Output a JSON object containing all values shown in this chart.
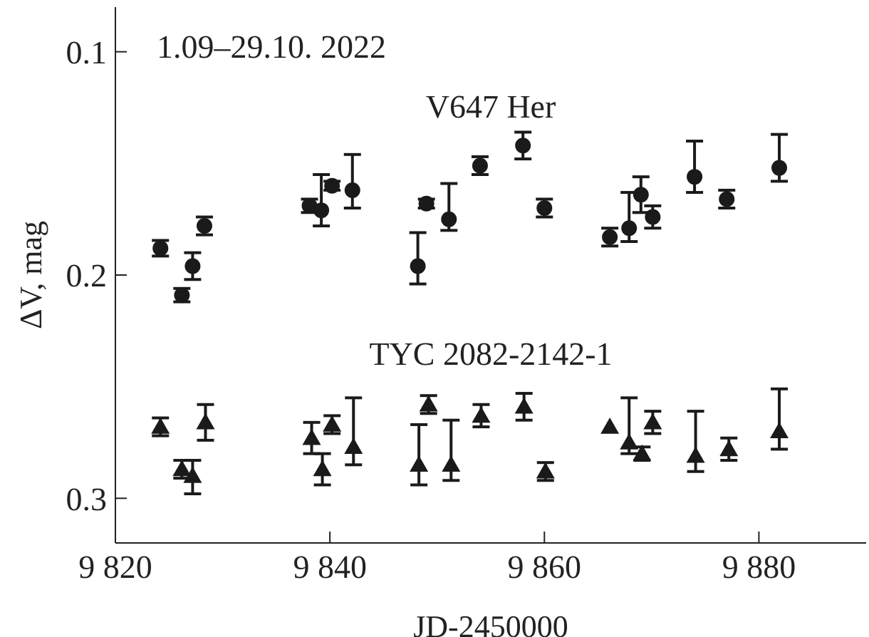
{
  "chart_data": {
    "type": "scatter",
    "xlabel": "JD-2450000",
    "ylabel": "ΔV, mag",
    "annotations": [
      "1.09–29.10. 2022"
    ],
    "xlim": [
      9820,
      9890
    ],
    "xticks": [
      {
        "value": 9820,
        "label": "9 820"
      },
      {
        "value": 9840,
        "label": "9 840"
      },
      {
        "value": 9860,
        "label": "9 860"
      },
      {
        "value": 9880,
        "label": "9 880"
      }
    ],
    "ylim": [
      0.32,
      0.08
    ],
    "yticks": [
      0.1,
      0.2,
      0.3
    ],
    "grid": false,
    "legend": false,
    "series": [
      {
        "name": "V647 Her",
        "color": "#1a1a1a",
        "marker": "circle",
        "x": [
          9824.2,
          9826.2,
          9827.2,
          9828.3,
          9838.1,
          9839.2,
          9840.2,
          9842.1,
          9848.2,
          9849.0,
          9851.1,
          9854.0,
          9858.0,
          9860.0,
          9866.1,
          9867.9,
          9869.0,
          9870.1,
          9874.0,
          9877.0,
          9881.9
        ],
        "values": [
          0.188,
          0.209,
          0.196,
          0.178,
          0.169,
          0.171,
          0.16,
          0.162,
          0.196,
          0.168,
          0.175,
          0.151,
          0.142,
          0.17,
          0.183,
          0.179,
          0.164,
          0.174,
          0.156,
          0.166,
          0.152
        ],
        "errors": [
          0.0035,
          0.003,
          0.006,
          0.004,
          0.003,
          [
            0.155,
            0.178
          ],
          0.002,
          [
            0.146,
            0.17
          ],
          [
            0.181,
            0.204
          ],
          0.002,
          [
            0.159,
            0.18
          ],
          0.004,
          0.006,
          0.004,
          0.004,
          [
            0.163,
            0.185
          ],
          0.008,
          0.005,
          [
            0.14,
            0.163
          ],
          0.004,
          [
            0.137,
            0.158
          ]
        ]
      },
      {
        "name": "TYC 2082-2142-1",
        "color": "#1a1a1a",
        "marker": "triangle",
        "x": [
          9824.2,
          9826.2,
          9827.2,
          9828.4,
          9838.3,
          9839.3,
          9840.2,
          9842.2,
          9848.3,
          9849.2,
          9851.3,
          9854.1,
          9858.1,
          9860.1,
          9866.1,
          9867.9,
          9869.1,
          9870.1,
          9874.1,
          9877.2,
          9881.9
        ],
        "values": [
          0.268,
          0.287,
          0.29,
          0.266,
          0.273,
          0.287,
          0.267,
          0.277,
          0.285,
          0.258,
          0.285,
          0.263,
          0.259,
          0.288,
          0.268,
          0.275,
          0.28,
          0.266,
          0.281,
          0.278,
          0.27
        ],
        "errors": [
          0.004,
          0.004,
          [
            0.283,
            0.298
          ],
          0.008,
          0.007,
          0.007,
          0.004,
          [
            0.255,
            0.285
          ],
          [
            0.267,
            0.294
          ],
          0.004,
          [
            0.265,
            0.292
          ],
          0.005,
          0.006,
          0.004,
          null,
          [
            0.255,
            0.28
          ],
          0.003,
          0.005,
          [
            0.261,
            0.288
          ],
          0.005,
          [
            0.251,
            0.278
          ]
        ]
      }
    ]
  }
}
